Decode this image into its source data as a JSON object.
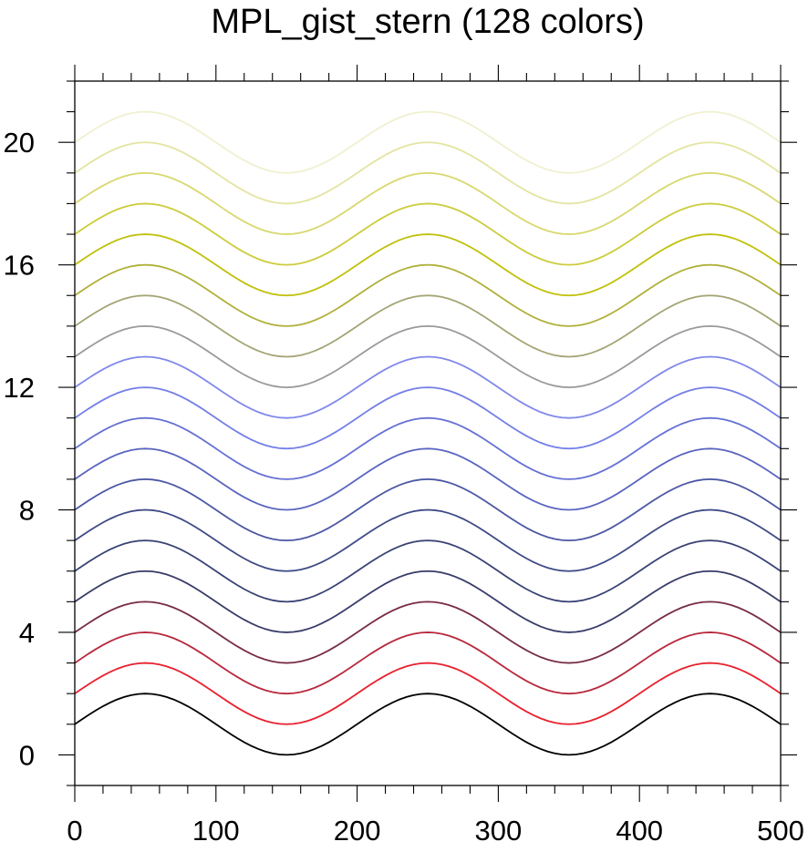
{
  "chart_data": {
    "type": "line",
    "title": "MPL_gist_stern (128 colors)",
    "xlabel": "",
    "ylabel": "",
    "xlim": [
      0,
      500
    ],
    "ylim": [
      -1,
      22
    ],
    "x_ticks": [
      0,
      100,
      200,
      300,
      400,
      500
    ],
    "x_tick_labels": [
      "0",
      "100",
      "200",
      "300",
      "400",
      "500"
    ],
    "y_ticks": [
      0,
      4,
      8,
      12,
      16,
      20
    ],
    "y_tick_labels": [
      "0",
      "4",
      "8",
      "12",
      "16",
      "20"
    ],
    "grid": false,
    "curve": {
      "function": "y = offset + 1 + sin(2*pi*x/200)",
      "x_start": 0,
      "x_end": 500,
      "x_step": 5
    },
    "series": [
      {
        "offset": 0,
        "color": "#000000"
      },
      {
        "offset": 1,
        "color": "#e8202e"
      },
      {
        "offset": 2,
        "color": "#b8283c"
      },
      {
        "offset": 3,
        "color": "#782c48"
      },
      {
        "offset": 4,
        "color": "#383c68"
      },
      {
        "offset": 5,
        "color": "#3a4274"
      },
      {
        "offset": 6,
        "color": "#3e4a86"
      },
      {
        "offset": 7,
        "color": "#4b57a4"
      },
      {
        "offset": 8,
        "color": "#5965c0"
      },
      {
        "offset": 9,
        "color": "#6571d4"
      },
      {
        "offset": 10,
        "color": "#737fe6"
      },
      {
        "offset": 11,
        "color": "#8088ea"
      },
      {
        "offset": 12,
        "color": "#9a9a9e"
      },
      {
        "offset": 13,
        "color": "#a4a474"
      },
      {
        "offset": 14,
        "color": "#b0b03a"
      },
      {
        "offset": 15,
        "color": "#c0c00a"
      },
      {
        "offset": 16,
        "color": "#cccc3c"
      },
      {
        "offset": 17,
        "color": "#d8d870"
      },
      {
        "offset": 18,
        "color": "#e4e4a2"
      },
      {
        "offset": 19,
        "color": "#f0f0d0"
      }
    ]
  }
}
